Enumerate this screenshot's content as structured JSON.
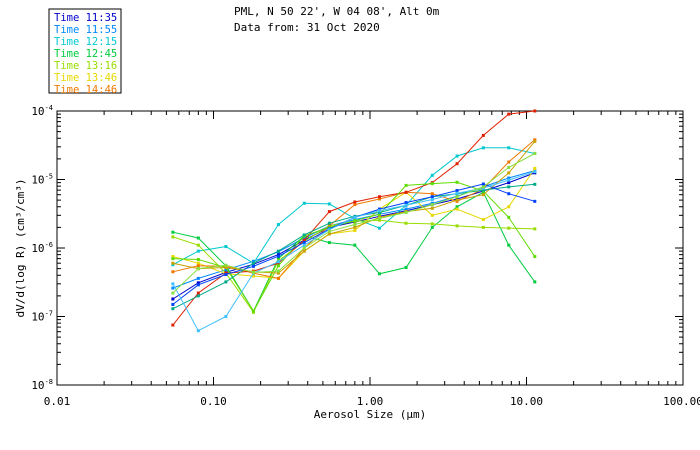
{
  "chart_data": {
    "type": "line",
    "title": "PML, N 50 22', W 04 08', Alt 0m",
    "subtitle": "Data from: 31 Oct 2020",
    "xlabel": "Aerosol Size (μm)",
    "ylabel": "dV/d(log R) (cm³/cm³)",
    "xscale": "log",
    "yscale": "log",
    "xlim": [
      0.01,
      100
    ],
    "ylim": [
      1e-08,
      0.0001
    ],
    "x_ticks": [
      {
        "value": 0.01,
        "label": "0.01"
      },
      {
        "value": 0.1,
        "label": "0.10"
      },
      {
        "value": 1,
        "label": "1.00"
      },
      {
        "value": 10,
        "label": "10.00"
      },
      {
        "value": 100,
        "label": "100.00"
      }
    ],
    "y_ticks": [
      {
        "value": 1e-08,
        "base": "10",
        "exp": "-8"
      },
      {
        "value": 1e-07,
        "base": "10",
        "exp": "-7"
      },
      {
        "value": 1e-06,
        "base": "10",
        "exp": "-6"
      },
      {
        "value": 1e-05,
        "base": "10",
        "exp": "-5"
      },
      {
        "value": 0.0001,
        "base": "10",
        "exp": "-4"
      }
    ],
    "legend_position": "top-left, outside plot",
    "x": [
      0.055,
      0.08,
      0.12,
      0.18,
      0.26,
      0.38,
      0.55,
      0.8,
      1.15,
      1.7,
      2.5,
      3.6,
      5.3,
      7.7,
      11.3
    ],
    "series": [
      {
        "name": "Time 11:35",
        "color": "#0000cc",
        "values": [
          1.8e-07,
          3.1e-07,
          4.4e-07,
          5.8e-07,
          8e-07,
          1.3e-06,
          2e-06,
          2.4e-06,
          2.9e-06,
          3.5e-06,
          4.3e-06,
          5.2e-06,
          6.8e-06,
          9e-06,
          1.25e-05
        ]
      },
      {
        "name": "Time 11:55",
        "color": "#0088ff",
        "values": [
          2.6e-07,
          3.6e-07,
          4.8e-07,
          6.4e-07,
          8.8e-07,
          1.4e-06,
          2.1e-06,
          2.6e-06,
          3.1e-06,
          3.7e-06,
          4.5e-06,
          5.7e-06,
          7.8e-06,
          1.05e-05,
          1.35e-05
        ]
      },
      {
        "name": "Time 12:15",
        "color": "#00c8d0",
        "values": [
          5.7e-07,
          9e-07,
          1.05e-06,
          6e-07,
          2.2e-06,
          4.5e-06,
          4.4e-06,
          2.7e-06,
          1.95e-06,
          4.2e-06,
          1.15e-05,
          2.2e-05,
          2.9e-05,
          2.9e-05,
          2.4e-05
        ]
      },
      {
        "name": "Time 12:45",
        "color": "#00cc40",
        "values": [
          1.7e-06,
          1.4e-06,
          5.5e-07,
          1.2e-07,
          7e-07,
          1.5e-06,
          1.2e-06,
          1.1e-06,
          4.2e-07,
          5.2e-07,
          2e-06,
          4e-06,
          6.5e-06,
          1.1e-06,
          3.2e-07
        ]
      },
      {
        "name": "Time 13:16",
        "color": "#99dd00",
        "values": [
          1.45e-06,
          1.1e-06,
          4.3e-07,
          1.15e-07,
          6.5e-07,
          1.25e-06,
          2.1e-06,
          2.45e-06,
          2.55e-06,
          2.3e-06,
          2.25e-06,
          2.1e-06,
          2e-06,
          1.95e-06,
          1.9e-06
        ]
      },
      {
        "name": "Time 13:46",
        "color": "#e8d800",
        "values": [
          7.5e-07,
          6e-07,
          4.2e-07,
          3.9e-07,
          3.6e-07,
          9e-07,
          1.6e-06,
          1.8e-06,
          3.7e-06,
          6.5e-06,
          3e-06,
          3.7e-06,
          2.6e-06,
          4e-06,
          1.45e-05
        ]
      },
      {
        "name": "Time 14:46",
        "color": "#f07800",
        "values": [
          4.5e-07,
          5.5e-07,
          5.4e-07,
          4.3e-07,
          3.6e-07,
          1e-06,
          2.1e-06,
          4.3e-06,
          5.2e-06,
          6.5e-06,
          6.2e-06,
          4.8e-06,
          7.3e-06,
          1.8e-05,
          3.8e-05
        ]
      },
      {
        "name": "",
        "color": "#e02000",
        "values": [
          7.5e-08,
          2.2e-07,
          4.3e-07,
          4.6e-07,
          6e-07,
          1.3e-06,
          3.4e-06,
          4.7e-06,
          5.6e-06,
          6.5e-06,
          9e-06,
          1.7e-05,
          4.4e-05,
          9e-05,
          0.0001
        ]
      },
      {
        "name": "",
        "color": "#60dd00",
        "values": [
          7e-07,
          6.8e-07,
          5.2e-07,
          1.2e-07,
          5.5e-07,
          1.5e-06,
          2e-06,
          2.5e-06,
          3.1e-06,
          8.2e-06,
          8.7e-06,
          9.1e-06,
          6.8e-06,
          2.8e-06,
          7.5e-07
        ]
      },
      {
        "name": "",
        "color": "#c8a000",
        "values": [
          6e-07,
          5e-07,
          5.2e-07,
          4.5e-07,
          4.3e-07,
          9e-07,
          1.6e-06,
          2e-06,
          2.8e-06,
          3.4e-06,
          3.8e-06,
          5e-06,
          6e-06,
          1.25e-05,
          3.6e-05
        ]
      },
      {
        "name": "",
        "color": "#00aa88",
        "values": [
          1.3e-07,
          2e-07,
          3.2e-07,
          6e-07,
          9e-07,
          1.55e-06,
          2.3e-06,
          2.9e-06,
          3.3e-06,
          4.2e-06,
          5.6e-06,
          6.2e-06,
          7e-06,
          7.8e-06,
          8.5e-06
        ]
      },
      {
        "name": "",
        "color": "#0040ff",
        "values": [
          1.5e-07,
          2.9e-07,
          4.1e-07,
          5.4e-07,
          7.6e-07,
          1.2e-06,
          1.9e-06,
          2.8e-06,
          3.7e-06,
          4.6e-06,
          5.6e-06,
          6.9e-06,
          8.6e-06,
          6.2e-06,
          4.8e-06
        ]
      },
      {
        "name": "",
        "color": "#40c0ff",
        "values": [
          3e-07,
          6.2e-08,
          1e-07,
          4.3e-07,
          6.3e-07,
          1.1e-06,
          1.85e-06,
          2.8e-06,
          3.5e-06,
          4.2e-06,
          5.1e-06,
          6.3e-06,
          7.5e-06,
          9.8e-06,
          1.3e-05
        ]
      },
      {
        "name": "",
        "color": "#88e040",
        "values": [
          2.2e-07,
          5e-07,
          5.6e-07,
          4.4e-07,
          4.6e-07,
          1e-06,
          1.75e-06,
          2.2e-06,
          2.7e-06,
          3.3e-06,
          4.3e-06,
          5.6e-06,
          7.8e-06,
          1.5e-05,
          2.4e-05
        ]
      }
    ]
  }
}
